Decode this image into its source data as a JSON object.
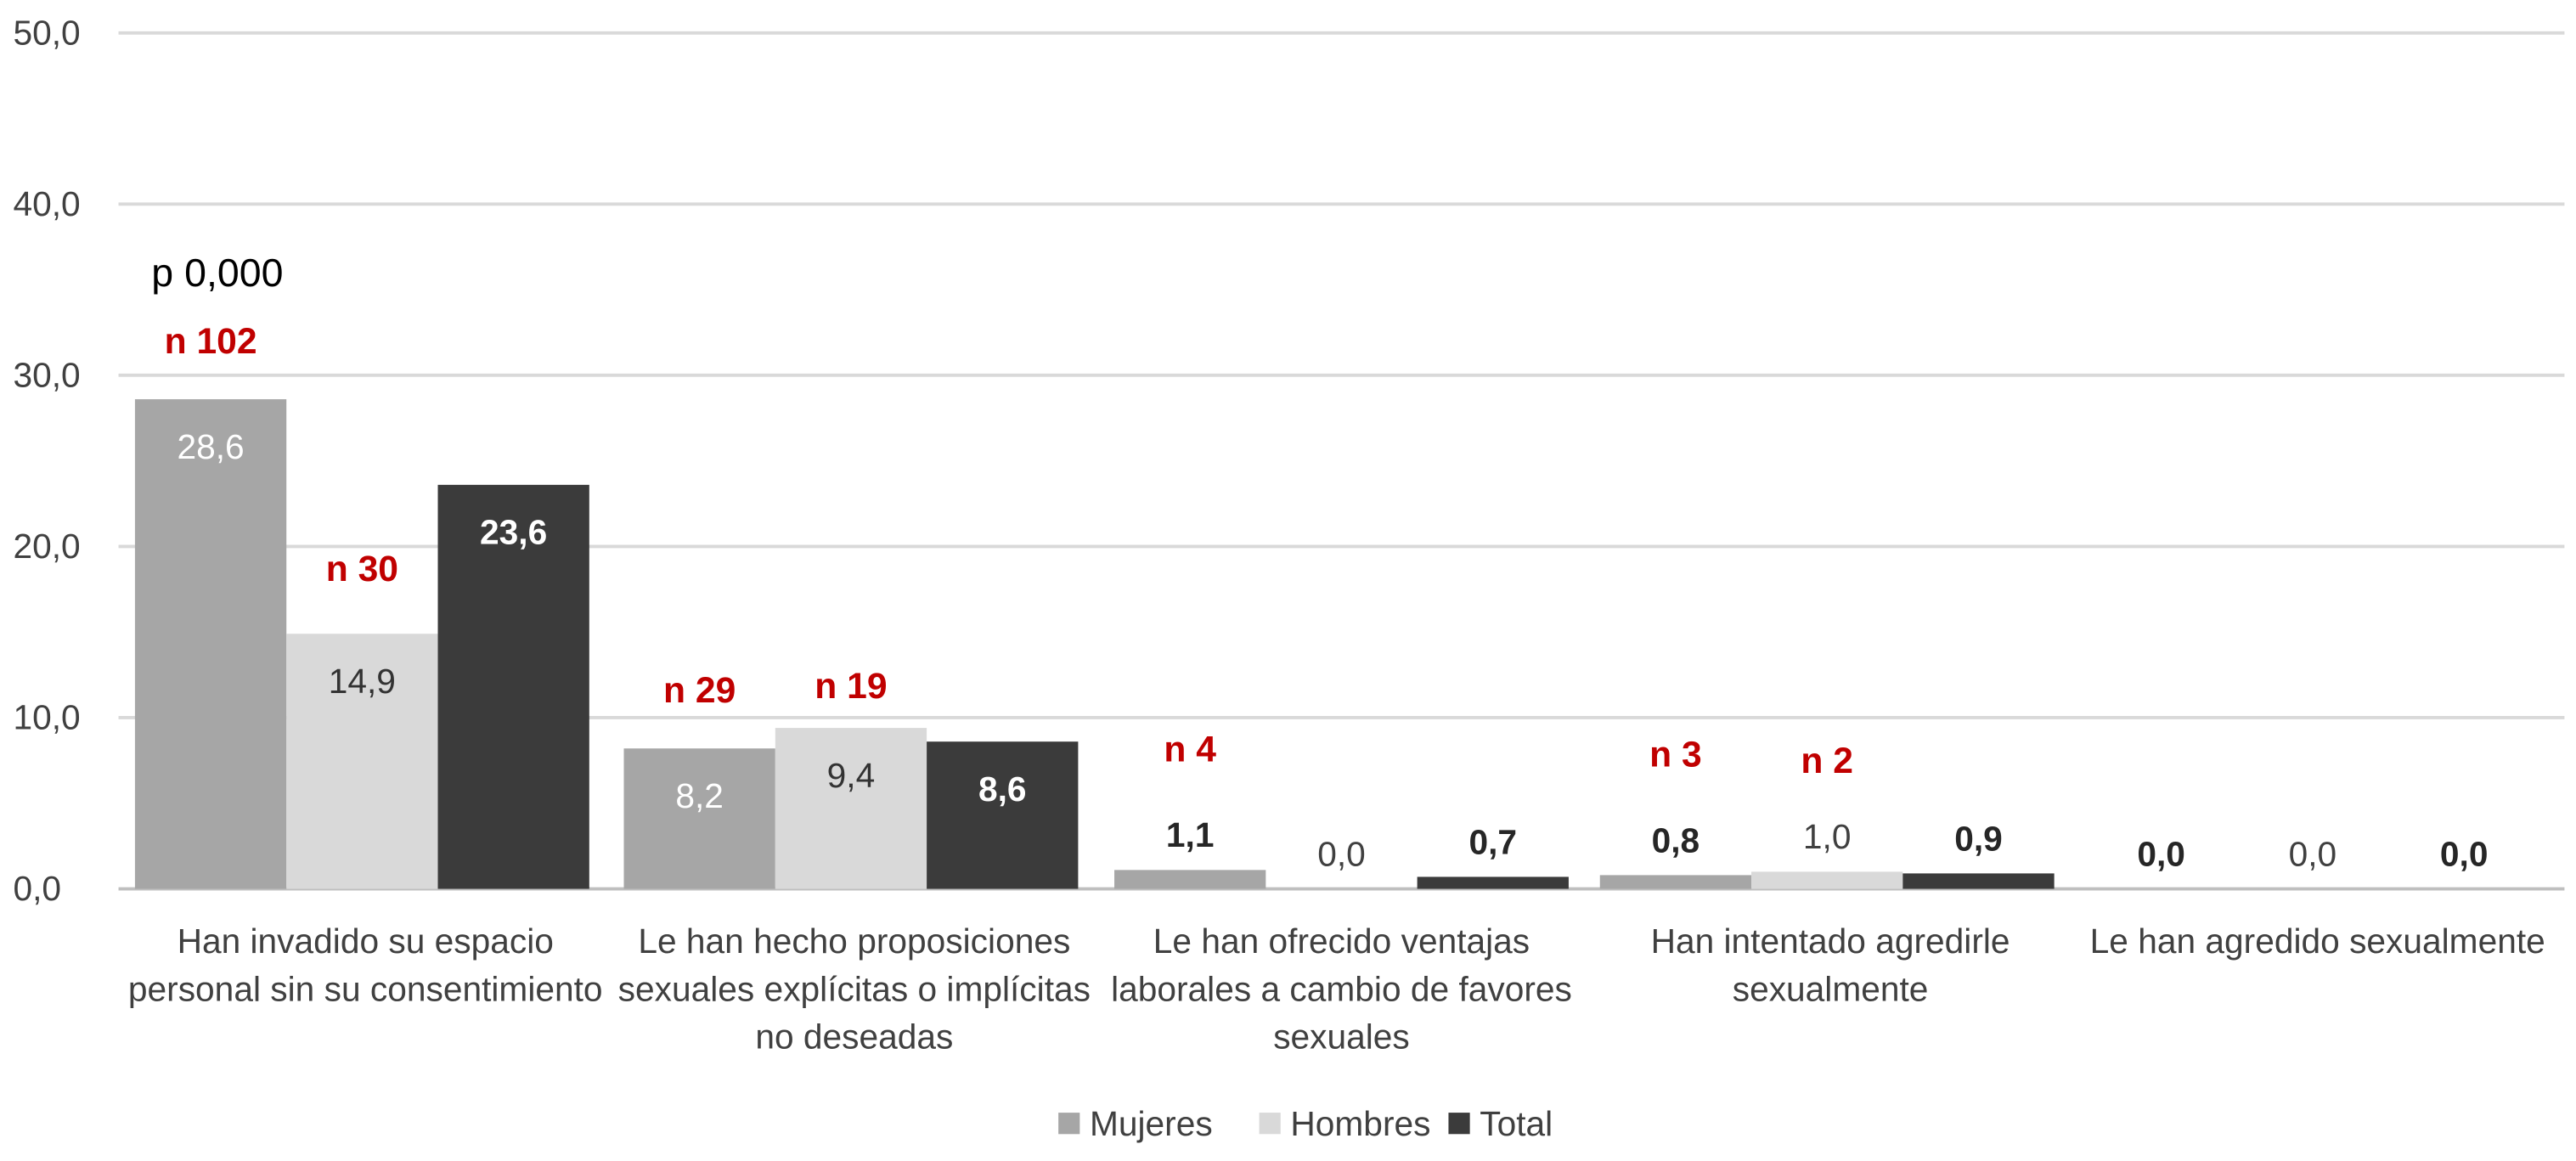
{
  "chart_data": {
    "type": "bar",
    "title": "",
    "xlabel": "",
    "ylabel": "",
    "ylim": [
      0,
      50
    ],
    "yticks": [
      "0,0",
      "10,0",
      "20,0",
      "30,0",
      "40,0",
      "50,0"
    ],
    "grid": true,
    "legend_position": "bottom",
    "categories": [
      [
        "Han invadido su espacio",
        "personal sin su consentimiento"
      ],
      [
        "Le han hecho proposiciones",
        "sexuales explícitas o implícitas",
        "no deseadas"
      ],
      [
        "Le han ofrecido ventajas",
        "laborales a cambio de favores",
        "sexuales"
      ],
      [
        "Han intentado agredirle",
        "sexualmente"
      ],
      [
        "Le han agredido sexualmente"
      ]
    ],
    "series": [
      {
        "name": "Mujeres",
        "color": "#a6a6a6",
        "label_color": "#ffffff",
        "values": [
          28.6,
          8.2,
          1.1,
          0.8,
          0.0
        ],
        "labels": [
          "28,6",
          "8,2",
          "1,1",
          "0,8",
          "0,0"
        ]
      },
      {
        "name": "Hombres",
        "color": "#d9d9d9",
        "label_color": "#333333",
        "values": [
          14.9,
          9.4,
          0.0,
          1.0,
          0.0
        ],
        "labels": [
          "14,9",
          "9,4",
          "0,0",
          "1,0",
          "0,0"
        ]
      },
      {
        "name": "Total",
        "color": "#3b3b3b",
        "label_color": "#ffffff",
        "values": [
          23.6,
          8.6,
          0.7,
          0.9,
          0.0
        ],
        "labels": [
          "23,6",
          "8,6",
          "0,7",
          "0,9",
          "0,0"
        ]
      }
    ],
    "annotations": [
      {
        "text": "p 0,000",
        "group": 0,
        "series": 0,
        "role": "p"
      },
      {
        "text": "n 102",
        "group": 0,
        "series": 0,
        "role": "n"
      },
      {
        "text": "n 30",
        "group": 0,
        "series": 1,
        "role": "n"
      },
      {
        "text": "n 29",
        "group": 1,
        "series": 0,
        "role": "n"
      },
      {
        "text": "n 19",
        "group": 1,
        "series": 1,
        "role": "n"
      },
      {
        "text": "n 4",
        "group": 2,
        "series": 0,
        "role": "n"
      },
      {
        "text": "n 3",
        "group": 3,
        "series": 0,
        "role": "n"
      },
      {
        "text": "n 2",
        "group": 3,
        "series": 1,
        "role": "n"
      }
    ],
    "annotation_color": "#c00000"
  }
}
